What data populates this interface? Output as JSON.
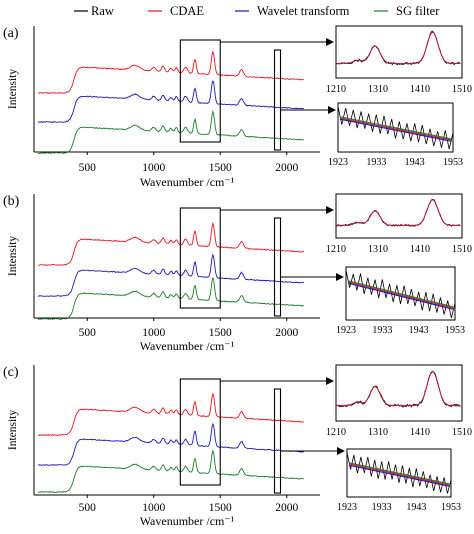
{
  "chart_data": {
    "type": "line",
    "legend": {
      "placement": "top",
      "entries": [
        {
          "name": "Raw",
          "color": "#000000"
        },
        {
          "name": "CDAE",
          "color": "#e8141e"
        },
        {
          "name": "Wavelet transform",
          "color": "#1d16b8"
        },
        {
          "name": "SG filter",
          "color": "#1b7d27"
        }
      ]
    },
    "panels": [
      {
        "label": "(a)",
        "xlabel": "Wavenumber /cm⁻¹",
        "ylabel": "Intensity",
        "xlim": [
          100,
          2250
        ],
        "xticks": [
          "500",
          "1000",
          "1500",
          "2000"
        ],
        "series": [
          "CDAE",
          "Wavelet transform",
          "SG filter"
        ],
        "boxes": [
          [
            1200,
            1500
          ],
          [
            1923,
            1953
          ]
        ],
        "inset_peaks": {
          "xlim": [
            1210,
            1510
          ],
          "xticks": [
            "1210",
            "1310",
            "1410",
            "1510"
          ]
        },
        "inset_baseline": {
          "xlim": [
            1923,
            1953
          ],
          "xticks": [
            "1923",
            "1933",
            "1943",
            "1953"
          ]
        }
      },
      {
        "label": "(b)",
        "xlabel": "Wavenumber /cm⁻¹",
        "ylabel": "Intensity",
        "xlim": [
          100,
          2250
        ],
        "xticks": [
          "500",
          "1000",
          "1500",
          "2000"
        ],
        "series": [
          "CDAE",
          "Wavelet transform",
          "SG filter"
        ],
        "boxes": [
          [
            1200,
            1500
          ],
          [
            1923,
            1953
          ]
        ],
        "inset_peaks": {
          "xlim": [
            1210,
            1510
          ],
          "xticks": [
            "1210",
            "1310",
            "1410",
            "1510"
          ]
        },
        "inset_baseline": {
          "xlim": [
            1923,
            1953
          ],
          "xticks": [
            "1923",
            "1933",
            "1943",
            "1953"
          ]
        }
      },
      {
        "label": "(c)",
        "xlabel": "Wavenumber /cm⁻¹",
        "ylabel": "Intensity",
        "xlim": [
          100,
          2250
        ],
        "xticks": [
          "500",
          "1000",
          "1500",
          "2000"
        ],
        "series": [
          "CDAE",
          "Wavelet transform",
          "SG filter"
        ],
        "boxes": [
          [
            1200,
            1500
          ],
          [
            1923,
            1953
          ]
        ],
        "inset_peaks": {
          "xlim": [
            1210,
            1510
          ],
          "xticks": [
            "1210",
            "1310",
            "1410",
            "1510"
          ]
        },
        "inset_baseline": {
          "xlim": [
            1923,
            1953
          ],
          "xticks": [
            "1923",
            "1933",
            "1943",
            "1953"
          ]
        }
      }
    ]
  }
}
